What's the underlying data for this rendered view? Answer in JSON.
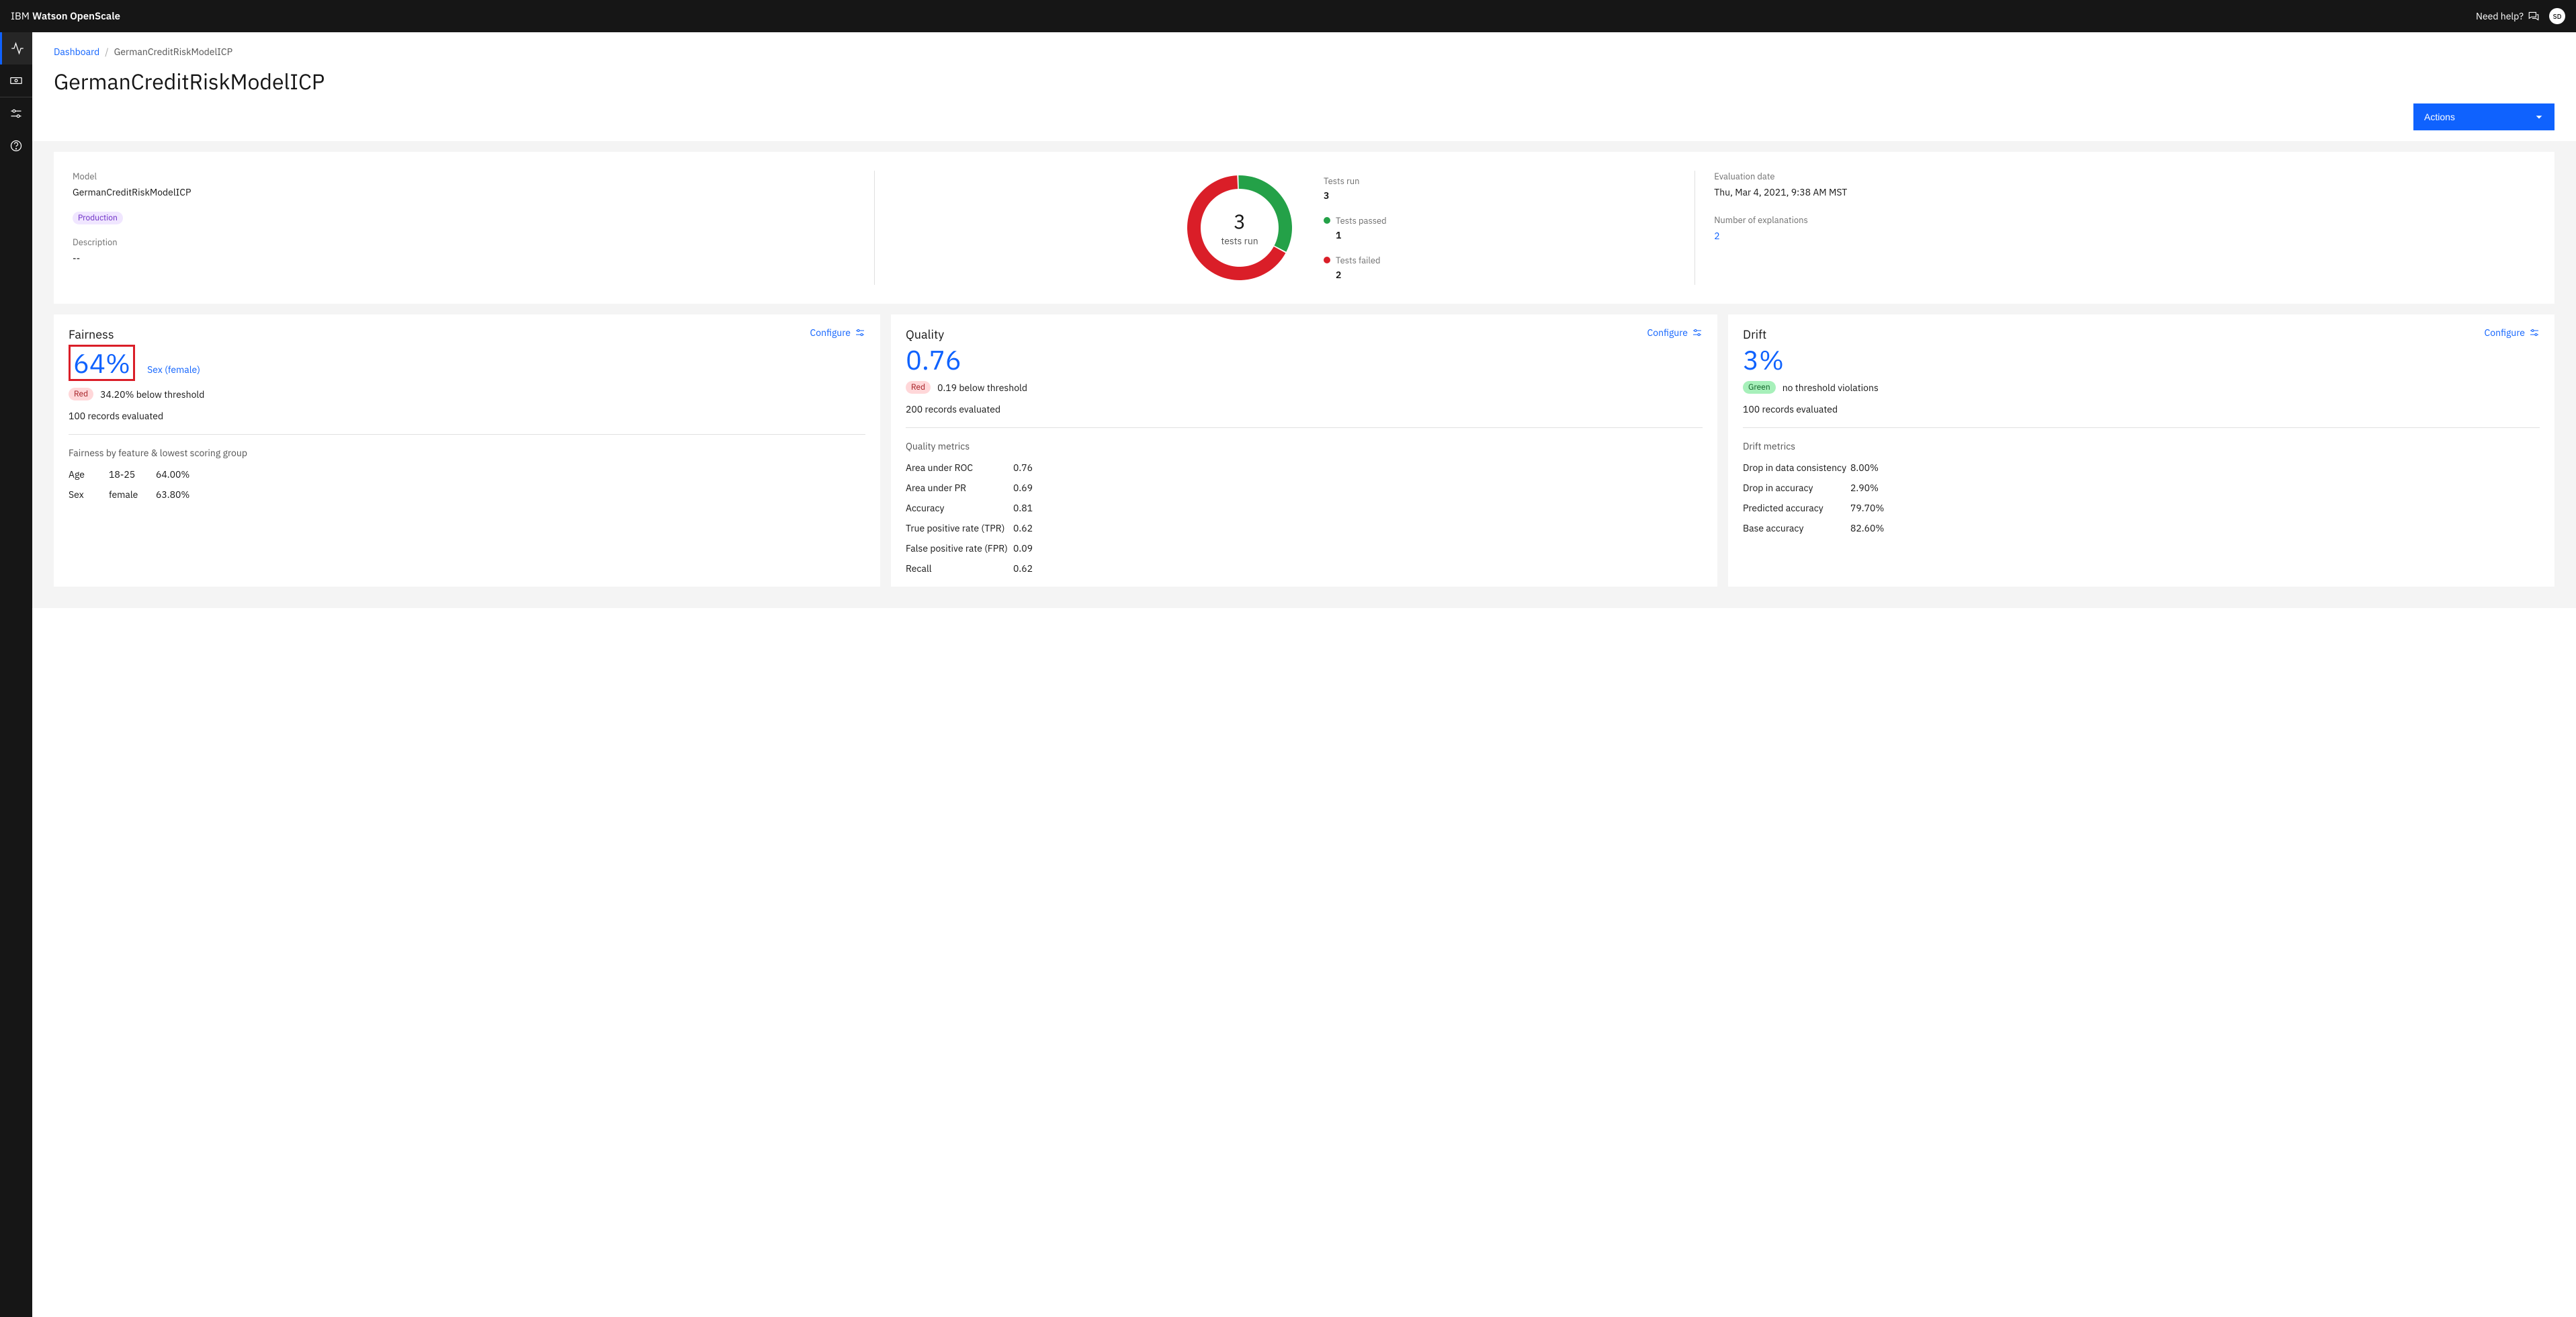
{
  "header": {
    "brand_prefix": "IBM",
    "brand_name": "Watson OpenScale",
    "help_label": "Need help?",
    "avatar_initials": "SD"
  },
  "breadcrumb": {
    "root": "Dashboard",
    "current": "GermanCreditRiskModelICP"
  },
  "page_title": "GermanCreditRiskModelICP",
  "actions_label": "Actions",
  "summary": {
    "model_label": "Model",
    "model_name": "GermanCreditRiskModelICP",
    "production_badge": "Production",
    "description_label": "Description",
    "description_value": "--",
    "donut": {
      "center_number": "3",
      "center_label": "tests run",
      "segments": [
        {
          "value": 1,
          "color": "#24a148"
        },
        {
          "value": 2,
          "color": "#da1e28"
        }
      ]
    },
    "legend": {
      "tests_run_label": "Tests run",
      "tests_run_value": "3",
      "tests_passed_label": "Tests passed",
      "tests_passed_value": "1",
      "tests_passed_color": "#24a148",
      "tests_failed_label": "Tests failed",
      "tests_failed_value": "2",
      "tests_failed_color": "#da1e28"
    },
    "eval_date_label": "Evaluation date",
    "eval_date_value": "Thu, Mar 4, 2021, 9:38 AM MST",
    "explanations_label": "Number of explanations",
    "explanations_value": "2"
  },
  "fairness": {
    "title": "Fairness",
    "configure": "Configure",
    "value": "64%",
    "group": "Sex (female)",
    "status_badge": "Red",
    "status_text": "34.20% below threshold",
    "records": "100 records evaluated",
    "subhead": "Fairness by feature & lowest scoring group",
    "rows": [
      {
        "feature": "Age",
        "group": "18-25",
        "score": "64.00%"
      },
      {
        "feature": "Sex",
        "group": "female",
        "score": "63.80%"
      }
    ]
  },
  "quality": {
    "title": "Quality",
    "configure": "Configure",
    "value": "0.76",
    "status_badge": "Red",
    "status_text": "0.19 below threshold",
    "records": "200 records evaluated",
    "subhead": "Quality metrics",
    "rows": [
      {
        "label": "Area under ROC",
        "value": "0.76"
      },
      {
        "label": "Area under PR",
        "value": "0.69"
      },
      {
        "label": "Accuracy",
        "value": "0.81"
      },
      {
        "label": "True positive rate (TPR)",
        "value": "0.62"
      },
      {
        "label": "False positive rate (FPR)",
        "value": "0.09"
      },
      {
        "label": "Recall",
        "value": "0.62"
      }
    ]
  },
  "drift": {
    "title": "Drift",
    "configure": "Configure",
    "value": "3%",
    "status_badge": "Green",
    "status_text": "no threshold violations",
    "records": "100 records evaluated",
    "subhead": "Drift metrics",
    "rows": [
      {
        "label": "Drop in data consistency",
        "value": "8.00%"
      },
      {
        "label": "Drop in accuracy",
        "value": "2.90%"
      },
      {
        "label": "Predicted accuracy",
        "value": "79.70%"
      },
      {
        "label": "Base accuracy",
        "value": "82.60%"
      }
    ]
  }
}
